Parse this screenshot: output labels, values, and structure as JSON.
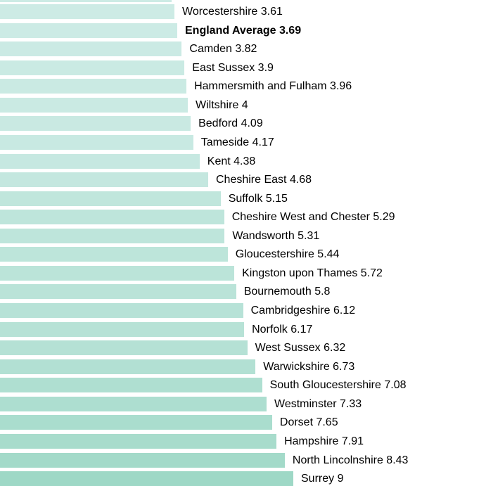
{
  "chart_data": {
    "type": "bar",
    "orientation": "horizontal",
    "title": "",
    "xlabel": "",
    "ylabel": "",
    "sorted": "ascending",
    "scale": "log",
    "value_range": [
      3.61,
      9
    ],
    "grid": false,
    "legend": false,
    "cropped_left_edge": true,
    "partial_bar_above": true,
    "background_color": "#ffffff",
    "text_color": "#000000",
    "bar_color_light": "#cdebe5",
    "bar_color_dark": "#9ed8c6",
    "highlight_item": "England Average",
    "items": [
      {
        "name": "Worcestershire",
        "value": "3.61",
        "bold": false
      },
      {
        "name": "England Average",
        "value": "3.69",
        "bold": true
      },
      {
        "name": "Camden",
        "value": "3.82",
        "bold": false
      },
      {
        "name": "East Sussex",
        "value": "3.9",
        "bold": false
      },
      {
        "name": "Hammersmith and Fulham",
        "value": "3.96",
        "bold": false
      },
      {
        "name": "Wiltshire",
        "value": "4",
        "bold": false
      },
      {
        "name": "Bedford",
        "value": "4.09",
        "bold": false
      },
      {
        "name": "Tameside",
        "value": "4.17",
        "bold": false
      },
      {
        "name": "Kent",
        "value": "4.38",
        "bold": false
      },
      {
        "name": "Cheshire East",
        "value": "4.68",
        "bold": false
      },
      {
        "name": "Suffolk",
        "value": "5.15",
        "bold": false
      },
      {
        "name": "Cheshire West and Chester",
        "value": "5.29",
        "bold": false
      },
      {
        "name": "Wandsworth",
        "value": "5.31",
        "bold": false
      },
      {
        "name": "Gloucestershire",
        "value": "5.44",
        "bold": false
      },
      {
        "name": "Kingston upon Thames",
        "value": "5.72",
        "bold": false
      },
      {
        "name": "Bournemouth",
        "value": "5.8",
        "bold": false
      },
      {
        "name": "Cambridgeshire",
        "value": "6.12",
        "bold": false
      },
      {
        "name": "Norfolk",
        "value": "6.17",
        "bold": false
      },
      {
        "name": "West Sussex",
        "value": "6.32",
        "bold": false
      },
      {
        "name": "Warwickshire",
        "value": "6.73",
        "bold": false
      },
      {
        "name": "South Gloucestershire",
        "value": "7.08",
        "bold": false
      },
      {
        "name": "Westminster",
        "value": "7.33",
        "bold": false
      },
      {
        "name": "Dorset",
        "value": "7.65",
        "bold": false
      },
      {
        "name": "Hampshire",
        "value": "7.91",
        "bold": false
      },
      {
        "name": "North Lincolnshire",
        "value": "8.43",
        "bold": false
      },
      {
        "name": "Surrey",
        "value": "9",
        "bold": false
      }
    ]
  }
}
